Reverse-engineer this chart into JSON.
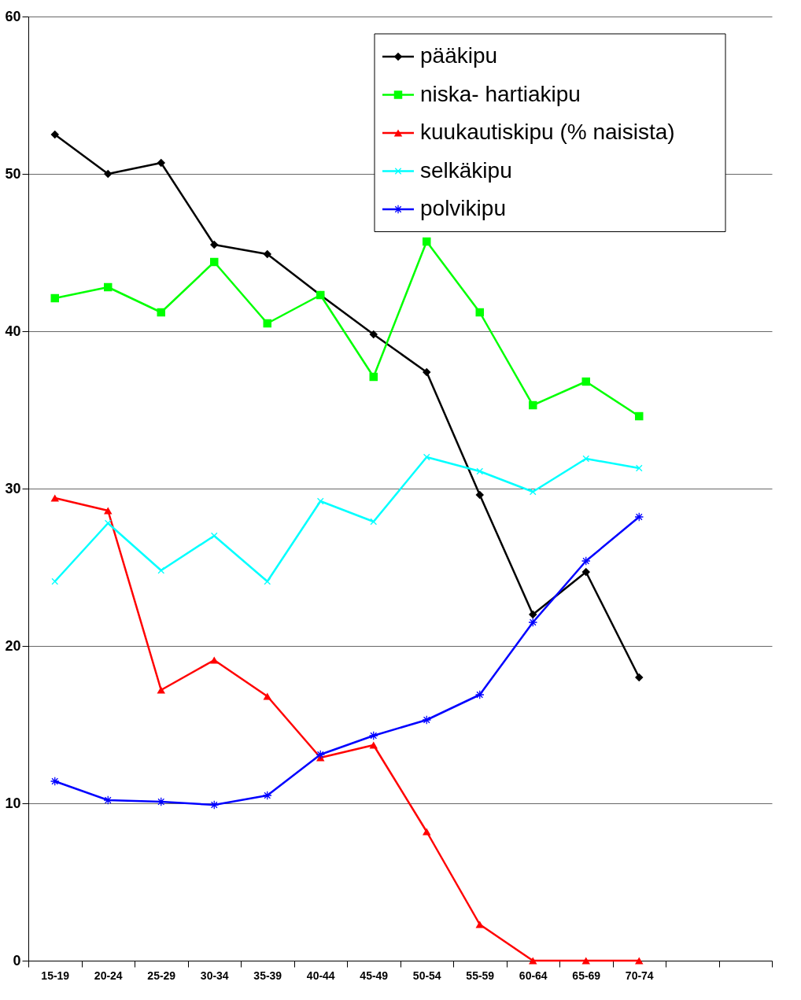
{
  "chart_data": {
    "type": "line",
    "categories": [
      "15-19",
      "20-24",
      "25-29",
      "30-34",
      "35-39",
      "40-44",
      "45-49",
      "50-54",
      "55-59",
      "60-64",
      "65-69",
      "70-74",
      null,
      null
    ],
    "series": [
      {
        "name": "pääkipu",
        "color": "#000000",
        "marker": "diamond",
        "values": [
          52.5,
          50.0,
          50.7,
          45.5,
          44.9,
          42.3,
          39.8,
          37.4,
          29.6,
          22.0,
          24.7,
          18.0,
          null,
          null
        ]
      },
      {
        "name": "niska- hartiakipu",
        "color": "#00ff00",
        "marker": "square",
        "values": [
          42.1,
          42.8,
          41.2,
          44.4,
          40.5,
          42.3,
          37.1,
          45.7,
          41.2,
          35.3,
          36.8,
          34.6,
          null,
          null
        ]
      },
      {
        "name": "kuukautiskipu (% naisista)",
        "color": "#ff0000",
        "marker": "triangle",
        "values": [
          29.4,
          28.6,
          17.2,
          19.1,
          16.8,
          12.9,
          13.7,
          8.2,
          2.3,
          0,
          0,
          0,
          null,
          null
        ]
      },
      {
        "name": "selkäkipu",
        "color": "#00ffff",
        "marker": "cross",
        "values": [
          24.1,
          27.8,
          24.8,
          27.0,
          24.1,
          29.2,
          27.9,
          32.0,
          31.1,
          29.8,
          31.9,
          31.3,
          null,
          null
        ]
      },
      {
        "name": "polvikipu",
        "color": "#0000ff",
        "marker": "star",
        "values": [
          11.4,
          10.2,
          10.1,
          9.9,
          10.5,
          13.1,
          14.3,
          15.3,
          16.9,
          21.5,
          25.4,
          28.2,
          null,
          null
        ]
      }
    ],
    "ylim": [
      0,
      60
    ],
    "yticks": [
      0,
      10,
      20,
      30,
      40,
      50,
      60
    ],
    "grid": "y",
    "legend": "top right",
    "line_style": "solid"
  }
}
